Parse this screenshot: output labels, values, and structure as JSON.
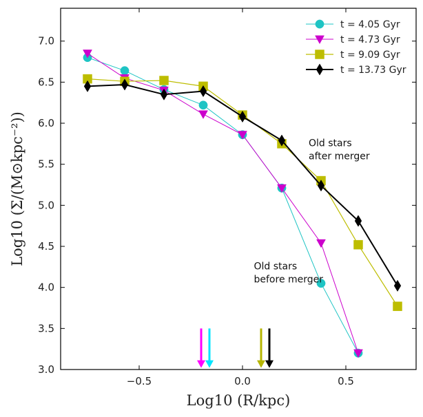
{
  "chart_data": {
    "type": "line",
    "xlabel": "Log10 (R/kpc)",
    "ylabel": "Log10 (Σ/(M⊙kpc⁻²))",
    "xlim": [
      -0.88,
      0.84
    ],
    "ylim": [
      3.0,
      7.4
    ],
    "x_ticks": [
      -0.5,
      0.0,
      0.5
    ],
    "x_tick_labels": [
      "−0.5",
      "0.0",
      "0.5"
    ],
    "y_ticks": [
      3.0,
      3.5,
      4.0,
      4.5,
      5.0,
      5.5,
      6.0,
      6.5,
      7.0
    ],
    "y_tick_labels": [
      "3.0",
      "3.5",
      "4.0",
      "4.5",
      "5.0",
      "5.5",
      "6.0",
      "6.5",
      "7.0"
    ],
    "legend_position": "top-right",
    "grid": false,
    "series": [
      {
        "name": "t = 4.05  Gyr",
        "color": "#1ec4c4",
        "marker": "circle",
        "linewidth": 1,
        "x": [
          -0.75,
          -0.57,
          -0.38,
          -0.19,
          0.0,
          0.19,
          0.38,
          0.56
        ],
        "y": [
          6.8,
          6.64,
          6.41,
          6.22,
          5.86,
          5.21,
          4.05,
          3.2
        ]
      },
      {
        "name": "t = 4.73  Gyr",
        "color": "#cc00cc",
        "marker": "triangle-down",
        "linewidth": 1,
        "x": [
          -0.75,
          -0.57,
          -0.38,
          -0.19,
          0.0,
          0.19,
          0.38,
          0.56
        ],
        "y": [
          6.85,
          6.55,
          6.4,
          6.11,
          5.86,
          5.21,
          4.54,
          3.2
        ]
      },
      {
        "name": "t = 9.09  Gyr",
        "color": "#bdbd00",
        "marker": "square",
        "linewidth": 1.2,
        "x": [
          -0.75,
          -0.57,
          -0.38,
          -0.19,
          0.0,
          0.19,
          0.38,
          0.56,
          0.75
        ],
        "y": [
          6.54,
          6.51,
          6.52,
          6.45,
          6.1,
          5.75,
          5.3,
          4.52,
          3.77
        ]
      },
      {
        "name": "t = 13.73 Gyr",
        "color": "#000000",
        "marker": "diamond",
        "linewidth": 2,
        "x": [
          -0.75,
          -0.57,
          -0.38,
          -0.19,
          0.0,
          0.19,
          0.38,
          0.56,
          0.75
        ],
        "y": [
          6.45,
          6.47,
          6.35,
          6.39,
          6.08,
          5.79,
          5.24,
          4.81,
          4.02
        ]
      }
    ],
    "arrows": [
      {
        "x": -0.2,
        "color": "#ff00ff"
      },
      {
        "x": -0.16,
        "color": "#00e5ff"
      },
      {
        "x": 0.09,
        "color": "#b5b500"
      },
      {
        "x": 0.13,
        "color": "#000000"
      }
    ],
    "annotations": [
      {
        "lines": [
          "Old stars",
          "after merger"
        ],
        "x": 0.32,
        "y": 5.72
      },
      {
        "lines": [
          "Old stars",
          "before merger"
        ],
        "x": 0.055,
        "y": 4.22
      }
    ]
  }
}
